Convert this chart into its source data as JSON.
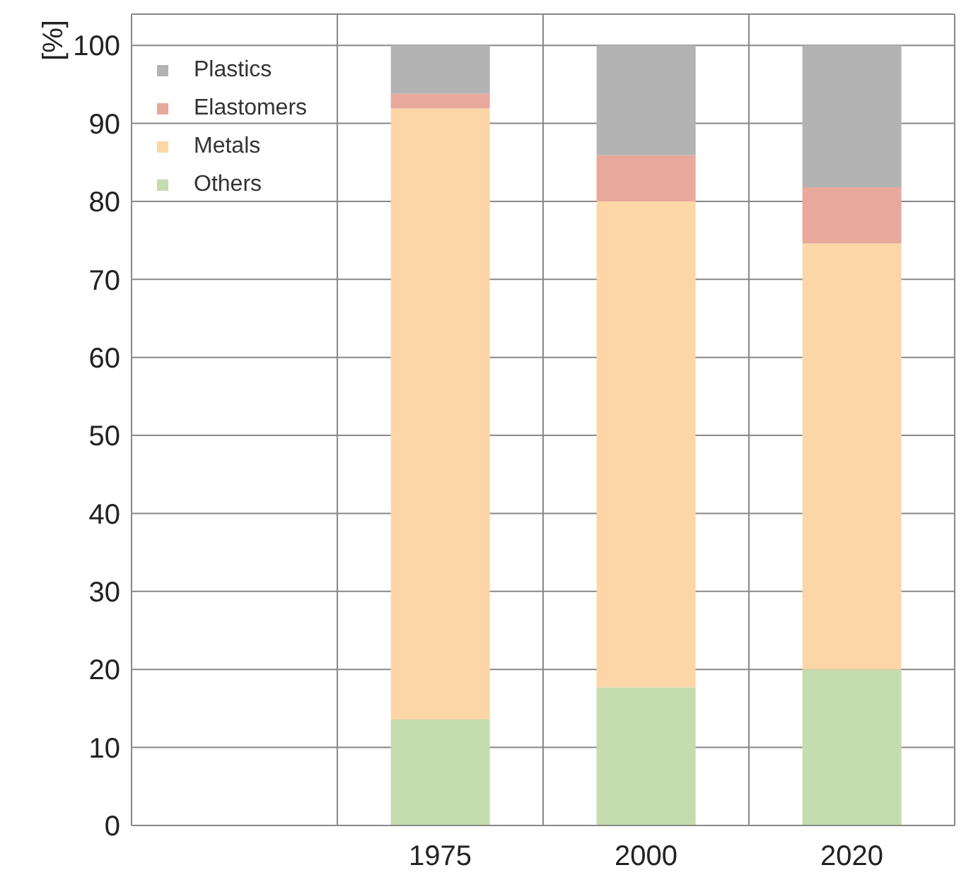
{
  "chart_data": {
    "type": "bar",
    "stacked": true,
    "ylabel": "[%]",
    "categories": [
      null,
      "1975",
      "2000",
      "2020"
    ],
    "series": [
      {
        "name": "Others",
        "color": "#c5dcae",
        "values": [
          null,
          13.6,
          17.7,
          20.0
        ]
      },
      {
        "name": "Metals",
        "color": "#fcd6a6",
        "values": [
          null,
          78.3,
          62.3,
          54.6
        ]
      },
      {
        "name": "Elastomers",
        "color": "#e8a89b",
        "values": [
          null,
          1.9,
          5.9,
          7.2
        ]
      },
      {
        "name": "Plastics",
        "color": "#b3b3b3",
        "values": [
          null,
          6.2,
          14.1,
          18.2
        ]
      }
    ],
    "ylim": [
      0,
      104
    ],
    "yticks": [
      0,
      10,
      20,
      30,
      40,
      50,
      60,
      70,
      80,
      90,
      100
    ],
    "grid": true,
    "legend": "top left"
  }
}
